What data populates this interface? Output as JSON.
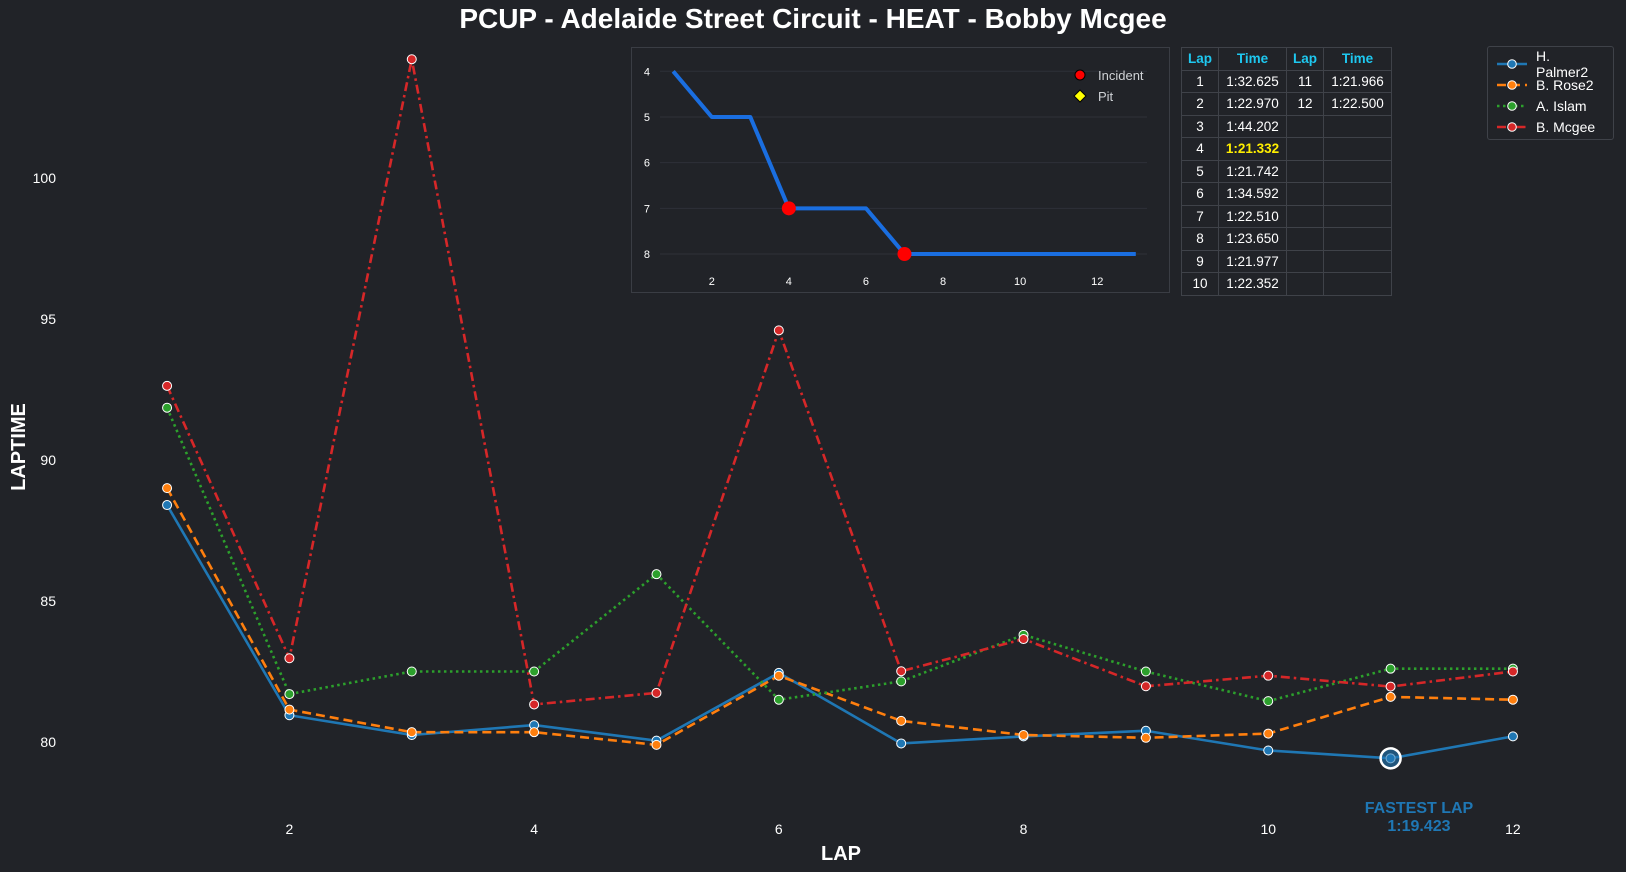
{
  "chart_data": [
    {
      "type": "line",
      "title": "PCUP - Adelaide Street Circuit - HEAT - Bobby Mcgee",
      "xlabel": "LAP",
      "ylabel": "LAPTIME",
      "xlim": [
        0.55,
        12.45
      ],
      "ylim": [
        78.3,
        104.6
      ],
      "xticks": [
        2,
        4,
        6,
        8,
        10,
        12
      ],
      "yticks": [
        80,
        85,
        90,
        95,
        100
      ],
      "grid": false,
      "legend_position": "top-right",
      "x": [
        1,
        2,
        3,
        4,
        5,
        6,
        7,
        8,
        9,
        10,
        11,
        12
      ],
      "series": [
        {
          "name": "H. Palmer2",
          "color": "#1f77b4",
          "style": "solid",
          "values": [
            88.4,
            80.95,
            80.25,
            80.6,
            80.05,
            82.45,
            79.95,
            80.2,
            80.4,
            79.7,
            79.423,
            80.2
          ]
        },
        {
          "name": "B. Rose2",
          "color": "#ff7f0e",
          "style": "dashed",
          "values": [
            89.0,
            81.15,
            80.35,
            80.35,
            79.9,
            82.35,
            80.75,
            80.25,
            80.15,
            80.3,
            81.6,
            81.5
          ]
        },
        {
          "name": "A. Islam",
          "color": "#2ca02c",
          "style": "dotted",
          "values": [
            91.85,
            81.7,
            82.5,
            82.5,
            85.95,
            81.5,
            82.15,
            83.8,
            82.5,
            81.45,
            82.6,
            82.6
          ]
        },
        {
          "name": "B. Mcgee",
          "color": "#d62728",
          "style": "dashdot",
          "values": [
            92.625,
            82.97,
            104.202,
            81.332,
            81.742,
            94.592,
            82.51,
            83.65,
            81.977,
            82.352,
            81.966,
            82.5
          ]
        }
      ],
      "annotation": {
        "label": "FASTEST LAP",
        "value": "1:19.423",
        "x": 11,
        "y": 79.423,
        "color": "#1f77b4"
      }
    },
    {
      "type": "line",
      "title": "",
      "xlim": [
        0.45,
        13.55
      ],
      "ylim": [
        8.35,
        3.6
      ],
      "xticks": [
        2,
        4,
        6,
        8,
        10,
        12
      ],
      "yticks": [
        4,
        5,
        6,
        7,
        8
      ],
      "y_inverted": true,
      "grid": true,
      "legend_position": "top-right",
      "x": [
        1,
        2,
        3,
        4,
        5,
        6,
        7,
        8,
        9,
        10,
        11,
        12,
        13
      ],
      "series": [
        {
          "name": "",
          "color": "#1a6ee0",
          "values": [
            4,
            5,
            5,
            7,
            7,
            7,
            8,
            8,
            8,
            8,
            8,
            8,
            8
          ]
        }
      ],
      "markers": [
        {
          "kind": "Incident",
          "x": 4,
          "y": 7,
          "color": "#ff0000"
        },
        {
          "kind": "Incident",
          "x": 7,
          "y": 8,
          "color": "#ff0000"
        }
      ],
      "legend": [
        {
          "label": "Incident",
          "color": "#ff0000",
          "shape": "circle"
        },
        {
          "label": "Pit",
          "color": "#ffff00",
          "shape": "diamond"
        }
      ]
    },
    {
      "type": "table",
      "columns": [
        "Lap",
        "Time",
        "Lap",
        "Time"
      ],
      "best_color": "#ffef00",
      "rows": [
        {
          "lap1": "1",
          "time1": "1:32.625",
          "lap2": "11",
          "time2": "1:21.966"
        },
        {
          "lap1": "2",
          "time1": "1:22.970",
          "lap2": "12",
          "time2": "1:22.500"
        },
        {
          "lap1": "3",
          "time1": "1:44.202",
          "lap2": "",
          "time2": ""
        },
        {
          "lap1": "4",
          "time1": "1:21.332",
          "lap2": "",
          "time2": "",
          "best": true
        },
        {
          "lap1": "5",
          "time1": "1:21.742",
          "lap2": "",
          "time2": ""
        },
        {
          "lap1": "6",
          "time1": "1:34.592",
          "lap2": "",
          "time2": ""
        },
        {
          "lap1": "7",
          "time1": "1:22.510",
          "lap2": "",
          "time2": ""
        },
        {
          "lap1": "8",
          "time1": "1:23.650",
          "lap2": "",
          "time2": ""
        },
        {
          "lap1": "9",
          "time1": "1:21.977",
          "lap2": "",
          "time2": ""
        },
        {
          "lap1": "10",
          "time1": "1:22.352",
          "lap2": "",
          "time2": ""
        }
      ]
    }
  ]
}
